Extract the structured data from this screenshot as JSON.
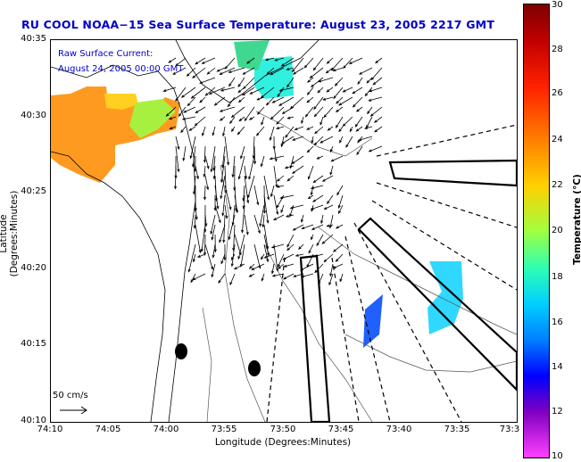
{
  "title": "RU COOL  NOAA−15  Sea Surface Temperature:  August 23, 2005 2217 GMT",
  "annotation": {
    "line1": "Raw Surface Current:",
    "line2": "August 24, 2005 00:00 GMT"
  },
  "scale_label": "50 cm/s",
  "axes": {
    "ylabel": "Latitude (Degrees:Minutes)",
    "xlabel": "Longitude (Degrees:Minutes)",
    "yticks": [
      "40:35",
      "40:30",
      "40:25",
      "40:20",
      "40:15",
      "40:10"
    ],
    "xticks": [
      "74:10",
      "74:05",
      "74:00",
      "73:55",
      "73:50",
      "73:45",
      "73:40",
      "73:35",
      "73:3"
    ]
  },
  "colorbar": {
    "label": "Temperature (°C)",
    "ticks": [
      "30",
      "28",
      "26",
      "24",
      "22",
      "20",
      "18",
      "16",
      "14",
      "12",
      "10"
    ]
  },
  "colors": {
    "title": "#0000c8",
    "annotation": "#0000c8"
  }
}
